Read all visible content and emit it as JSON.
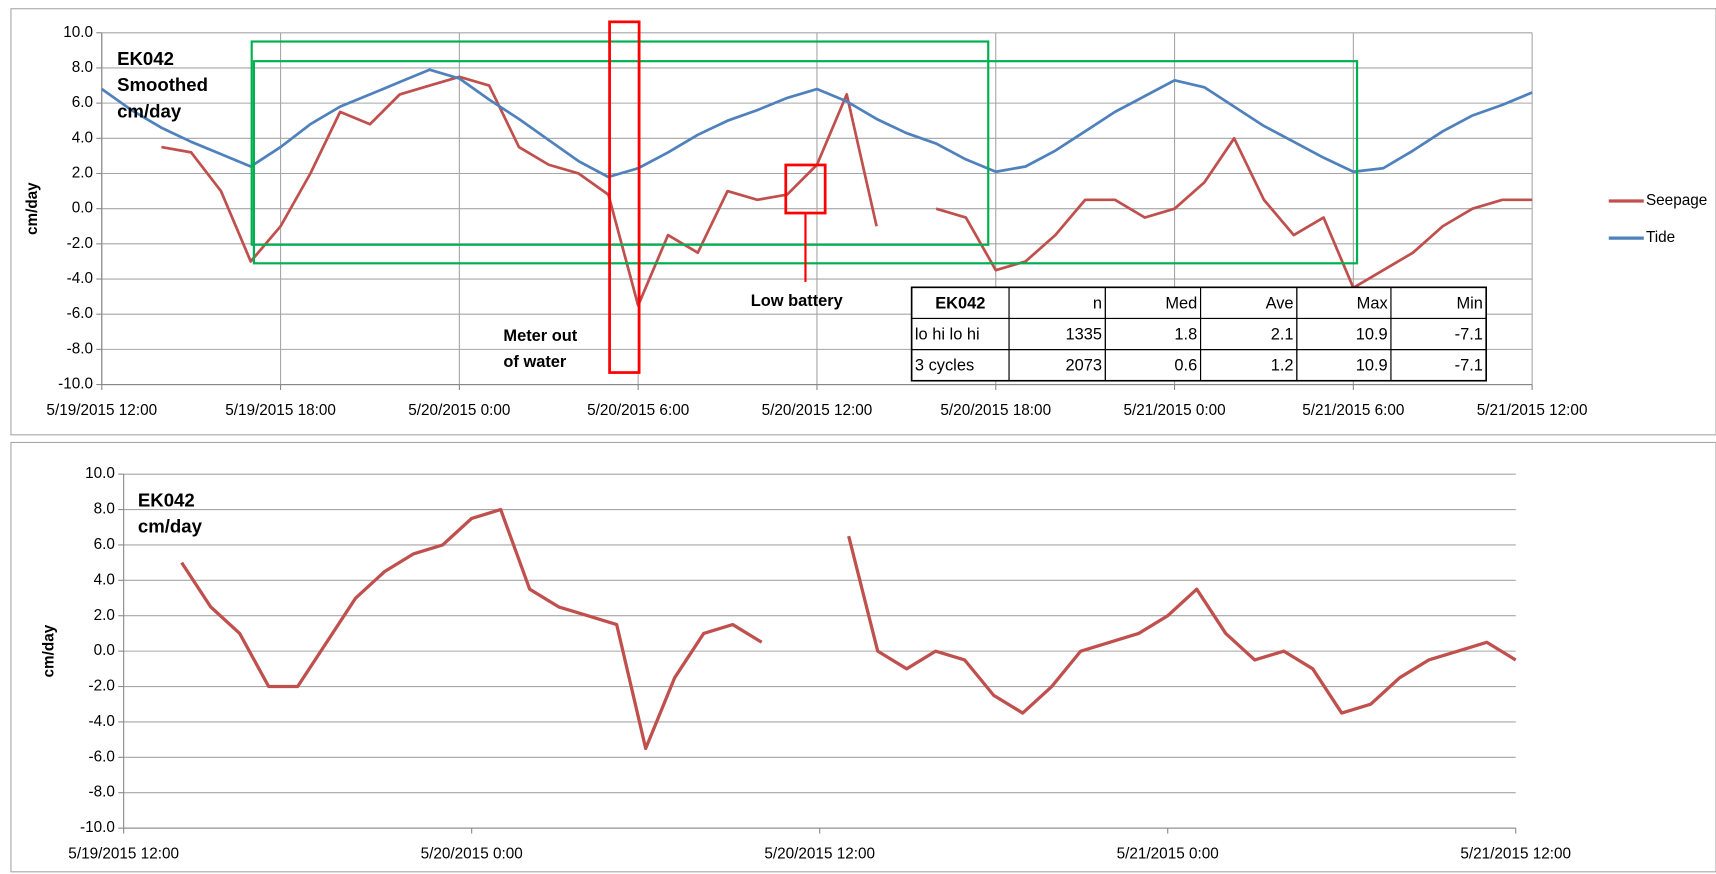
{
  "chart_data": [
    {
      "type": "line",
      "title_lines": [
        "EK042",
        "Smoothed",
        "cm/day"
      ],
      "ylabel": "cm/day",
      "x": [
        "5/19/2015 12:00",
        "5/19/2015 13:00",
        "5/19/2015 14:00",
        "5/19/2015 15:00",
        "5/19/2015 16:00",
        "5/19/2015 17:00",
        "5/19/2015 18:00",
        "5/19/2015 19:00",
        "5/19/2015 20:00",
        "5/19/2015 21:00",
        "5/19/2015 22:00",
        "5/19/2015 23:00",
        "5/20/2015 0:00",
        "5/20/2015 1:00",
        "5/20/2015 2:00",
        "5/20/2015 3:00",
        "5/20/2015 4:00",
        "5/20/2015 5:00",
        "5/20/2015 6:00",
        "5/20/2015 7:00",
        "5/20/2015 8:00",
        "5/20/2015 9:00",
        "5/20/2015 10:00",
        "5/20/2015 11:00",
        "5/20/2015 12:00",
        "5/20/2015 13:00",
        "5/20/2015 14:00",
        "5/20/2015 15:00",
        "5/20/2015 16:00",
        "5/20/2015 17:00",
        "5/20/2015 18:00",
        "5/20/2015 19:00",
        "5/20/2015 20:00",
        "5/20/2015 21:00",
        "5/20/2015 22:00",
        "5/20/2015 23:00",
        "5/21/2015 0:00",
        "5/21/2015 1:00",
        "5/21/2015 2:00",
        "5/21/2015 3:00",
        "5/21/2015 4:00",
        "5/21/2015 5:00",
        "5/21/2015 6:00",
        "5/21/2015 7:00",
        "5/21/2015 8:00",
        "5/21/2015 9:00",
        "5/21/2015 10:00",
        "5/21/2015 11:00",
        "5/21/2015 12:00"
      ],
      "series": [
        {
          "name": "Seepage",
          "color": "#c0504d",
          "values": [
            null,
            null,
            3.5,
            3.2,
            1.0,
            -3.0,
            -1.0,
            2.0,
            5.5,
            4.8,
            6.5,
            7.0,
            7.5,
            7.0,
            3.5,
            2.5,
            2.0,
            0.8,
            -5.5,
            -1.5,
            -2.5,
            1.0,
            0.5,
            0.8,
            2.5,
            6.5,
            -1.0,
            null,
            0,
            -0.5,
            -3.5,
            -3.0,
            -1.5,
            0.5,
            0.5,
            -0.5,
            0,
            1.5,
            4.0,
            0.5,
            -1.5,
            -0.5,
            -4.5,
            -3.5,
            -2.5,
            -1.0,
            0,
            0.5,
            0.5
          ]
        },
        {
          "name": "Tide",
          "color": "#4f81bd",
          "values": [
            6.8,
            5.6,
            4.6,
            3.8,
            3.1,
            2.4,
            3.5,
            4.8,
            5.8,
            6.5,
            7.2,
            7.9,
            7.4,
            6.2,
            5.1,
            3.9,
            2.7,
            1.8,
            2.3,
            3.2,
            4.2,
            5.0,
            5.6,
            6.3,
            6.8,
            6.1,
            5.1,
            4.3,
            3.7,
            2.8,
            2.1,
            2.4,
            3.3,
            4.4,
            5.5,
            6.4,
            7.3,
            6.9,
            5.8,
            4.7,
            3.8,
            2.9,
            2.1,
            2.3,
            3.3,
            4.4,
            5.3,
            5.9,
            6.6
          ]
        }
      ],
      "xlim": [
        "5/19/2015 12:00",
        "5/21/2015 12:00"
      ],
      "xticks": [
        "5/19/2015 12:00",
        "5/19/2015 18:00",
        "5/20/2015 0:00",
        "5/20/2015 6:00",
        "5/20/2015 12:00",
        "5/20/2015 18:00",
        "5/21/2015 0:00",
        "5/21/2015 6:00",
        "5/21/2015 12:00"
      ],
      "ylim": [
        -10,
        10
      ],
      "yticks": [
        {
          "value": 10,
          "label": "10.0"
        },
        {
          "value": 8,
          "label": "8.0"
        },
        {
          "value": 6,
          "label": "6.0"
        },
        {
          "value": 4,
          "label": "4.0"
        },
        {
          "value": 2,
          "label": "2.0"
        },
        {
          "value": 0,
          "label": "0.0"
        },
        {
          "value": -2,
          "label": "-2.0"
        },
        {
          "value": -4,
          "label": "-4.0"
        },
        {
          "value": -6,
          "label": "-6.0"
        },
        {
          "value": -8,
          "label": "-8.0"
        },
        {
          "value": -10,
          "label": "-10.0"
        }
      ],
      "grid": true,
      "x_grid": true,
      "legend": "right",
      "annotations": [
        {
          "lines": [
            "Meter out",
            "of water"
          ],
          "color": "#ff0000"
        },
        {
          "lines": [
            "Low battery"
          ],
          "color": "#ff0000"
        }
      ],
      "stats_table": {
        "header": [
          "EK042",
          "n",
          "Med",
          "Ave",
          "Max",
          "Min"
        ],
        "rows": [
          [
            "lo hi lo hi",
            1335,
            1.8,
            2.1,
            10.9,
            -7.1
          ],
          [
            "3 cycles",
            2073,
            0.6,
            1.2,
            10.9,
            -7.1
          ]
        ]
      }
    },
    {
      "type": "line",
      "title_lines": [
        "EK042",
        "cm/day"
      ],
      "ylabel": "cm/day",
      "x": [
        "5/19/2015 12:00",
        "5/19/2015 13:00",
        "5/19/2015 14:00",
        "5/19/2015 15:00",
        "5/19/2015 16:00",
        "5/19/2015 17:00",
        "5/19/2015 18:00",
        "5/19/2015 19:00",
        "5/19/2015 20:00",
        "5/19/2015 21:00",
        "5/19/2015 22:00",
        "5/19/2015 23:00",
        "5/20/2015 0:00",
        "5/20/2015 1:00",
        "5/20/2015 2:00",
        "5/20/2015 3:00",
        "5/20/2015 4:00",
        "5/20/2015 5:00",
        "5/20/2015 6:00",
        "5/20/2015 7:00",
        "5/20/2015 8:00",
        "5/20/2015 9:00",
        "5/20/2015 10:00",
        "5/20/2015 11:00",
        "5/20/2015 12:00",
        "5/20/2015 13:00",
        "5/20/2015 14:00",
        "5/20/2015 15:00",
        "5/20/2015 16:00",
        "5/20/2015 17:00",
        "5/20/2015 18:00",
        "5/20/2015 19:00",
        "5/20/2015 20:00",
        "5/20/2015 21:00",
        "5/20/2015 22:00",
        "5/20/2015 23:00",
        "5/21/2015 0:00",
        "5/21/2015 1:00",
        "5/21/2015 2:00",
        "5/21/2015 3:00",
        "5/21/2015 4:00",
        "5/21/2015 5:00",
        "5/21/2015 6:00",
        "5/21/2015 7:00",
        "5/21/2015 8:00",
        "5/21/2015 9:00",
        "5/21/2015 10:00",
        "5/21/2015 11:00",
        "5/21/2015 12:00"
      ],
      "series": [
        {
          "color": "#c0504d",
          "values": [
            null,
            null,
            5.0,
            2.5,
            1.0,
            -2.0,
            -2.0,
            0.5,
            3.0,
            4.5,
            5.5,
            6.0,
            7.5,
            8.0,
            3.5,
            2.5,
            2.0,
            1.5,
            -5.5,
            -1.5,
            1.0,
            1.5,
            0.5,
            null,
            null,
            6.5,
            0,
            -1.0,
            0,
            -0.5,
            -2.5,
            -3.5,
            -2.0,
            0,
            0.5,
            1.0,
            2.0,
            3.5,
            1.0,
            -0.5,
            0,
            -1.0,
            -3.5,
            -3.0,
            -1.5,
            -0.5,
            0,
            0.5,
            -0.5
          ]
        }
      ],
      "xlim": [
        "5/19/2015 12:00",
        "5/21/2015 12:00"
      ],
      "xticks": [
        "5/19/2015 12:00",
        "5/20/2015 0:00",
        "5/20/2015 12:00",
        "5/21/2015 0:00",
        "5/21/2015 12:00"
      ],
      "ylim": [
        -10,
        10
      ],
      "yticks": [
        {
          "value": 10,
          "label": "10.0"
        },
        {
          "value": 8,
          "label": "8.0"
        },
        {
          "value": 6,
          "label": "6.0"
        },
        {
          "value": 4,
          "label": "4.0"
        },
        {
          "value": 2,
          "label": "2.0"
        },
        {
          "value": 0,
          "label": "0.0"
        },
        {
          "value": -2,
          "label": "-2.0"
        },
        {
          "value": -4,
          "label": "-4.0"
        },
        {
          "value": -6,
          "label": "-6.0"
        },
        {
          "value": -8,
          "label": "-8.0"
        },
        {
          "value": -10,
          "label": "-10.0"
        }
      ],
      "grid": true,
      "x_grid": false
    }
  ]
}
